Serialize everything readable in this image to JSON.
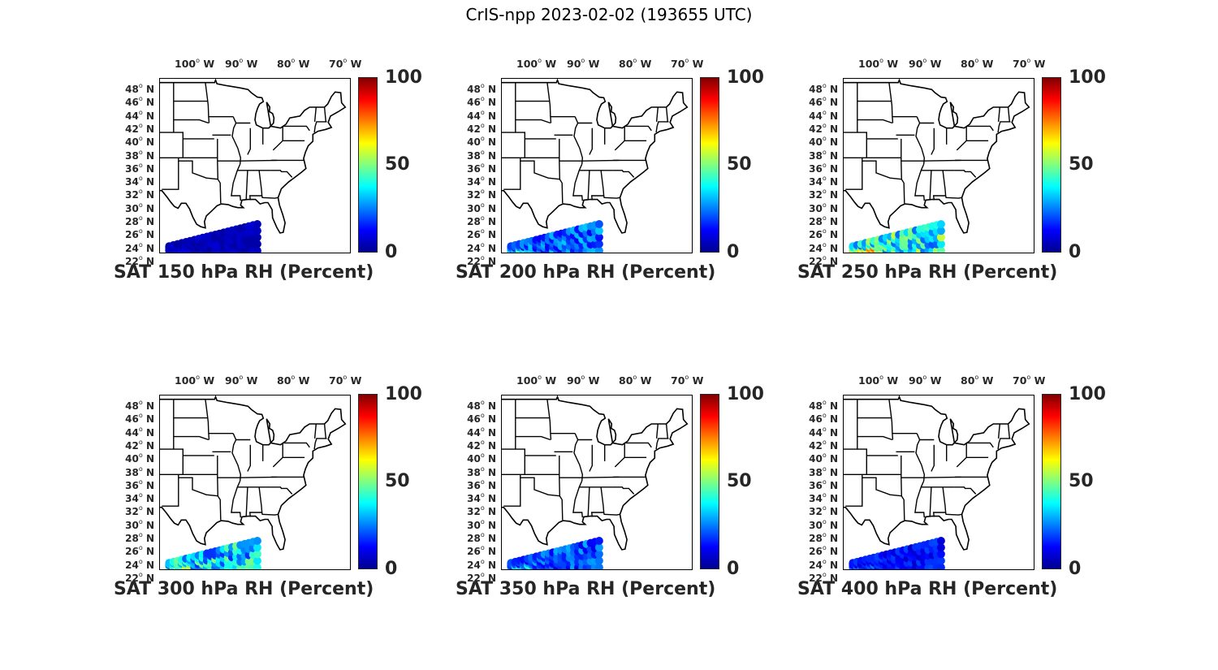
{
  "title": "CrIS-npp 2023-02-02 (193655 UTC)",
  "lon_ticks": [
    "100",
    "90",
    "80",
    "70"
  ],
  "lon_hemisphere": "W",
  "lat_ticks": [
    "48",
    "46",
    "44",
    "42",
    "40",
    "38",
    "36",
    "34",
    "32",
    "30",
    "28",
    "26",
    "24",
    "22"
  ],
  "lat_hemisphere": "N",
  "colorbar": {
    "ticks": [
      "100",
      "50",
      "0"
    ],
    "colormap": "jet",
    "min": 0,
    "max": 100
  },
  "panels": [
    {
      "label": "SAT 150 hPa RH (Percent)"
    },
    {
      "label": "SAT 200 hPa RH (Percent)"
    },
    {
      "label": "SAT 250 hPa RH (Percent)"
    },
    {
      "label": "SAT 300 hPa RH (Percent)"
    },
    {
      "label": "SAT 350 hPa RH (Percent)"
    },
    {
      "label": "SAT 400 hPa RH (Percent)"
    }
  ],
  "chart_data": [
    {
      "type": "scatter",
      "title": "SAT 150 hPa RH (Percent)",
      "field": "relative humidity",
      "level_hPa": 150,
      "clim": [
        0,
        100
      ],
      "typical_value": 5,
      "swath_lon": [
        -105,
        -86
      ],
      "swath_lat": [
        22,
        26.5
      ]
    },
    {
      "type": "scatter",
      "title": "SAT 200 hPa RH (Percent)",
      "field": "relative humidity",
      "level_hPa": 200,
      "clim": [
        0,
        100
      ],
      "typical_value": 20,
      "swath_lon": [
        -105,
        -86
      ],
      "swath_lat": [
        22,
        26.5
      ]
    },
    {
      "type": "scatter",
      "title": "SAT 250 hPa RH (Percent)",
      "field": "relative humidity",
      "level_hPa": 250,
      "clim": [
        0,
        100
      ],
      "typical_value": 35,
      "swath_lon": [
        -105,
        -86
      ],
      "swath_lat": [
        22,
        26.5
      ]
    },
    {
      "type": "scatter",
      "title": "SAT 300 hPa RH (Percent)",
      "field": "relative humidity",
      "level_hPa": 300,
      "clim": [
        0,
        100
      ],
      "typical_value": 30,
      "swath_lon": [
        -105,
        -86
      ],
      "swath_lat": [
        22,
        26.5
      ]
    },
    {
      "type": "scatter",
      "title": "SAT 350 hPa RH (Percent)",
      "field": "relative humidity",
      "level_hPa": 350,
      "clim": [
        0,
        100
      ],
      "typical_value": 18,
      "swath_lon": [
        -105,
        -86
      ],
      "swath_lat": [
        22,
        26.5
      ]
    },
    {
      "type": "scatter",
      "title": "SAT 400 hPa RH (Percent)",
      "field": "relative humidity",
      "level_hPa": 400,
      "clim": [
        0,
        100
      ],
      "typical_value": 12,
      "swath_lon": [
        -105,
        -86
      ],
      "swath_lat": [
        22,
        26.5
      ]
    }
  ]
}
